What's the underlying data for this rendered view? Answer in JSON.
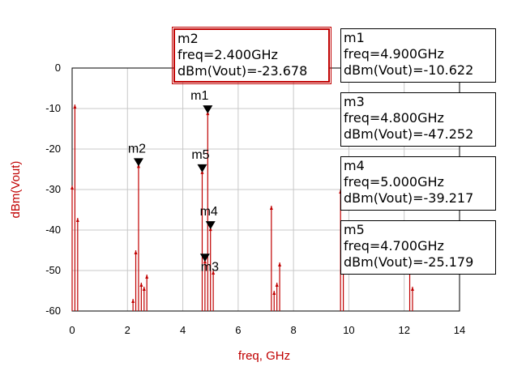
{
  "chart_data": {
    "type": "spectrum",
    "xlabel": "freq, GHz",
    "ylabel": "dBm(Vout)",
    "xlim": [
      0,
      14
    ],
    "ylim": [
      -60,
      0
    ],
    "x_ticks": [
      0,
      2,
      4,
      6,
      8,
      10,
      12,
      14
    ],
    "y_ticks": [
      0,
      -10,
      -20,
      -30,
      -40,
      -50,
      -60
    ],
    "x_tick_labels": [
      "0",
      "2",
      "4",
      "6",
      "8",
      "10",
      "12",
      "14"
    ],
    "y_tick_labels": [
      "0",
      "-10",
      "-20",
      "-30",
      "-40",
      "-50",
      "-60"
    ],
    "grid": true,
    "series": [
      {
        "color": "#c00000",
        "points": [
          {
            "x": 0.0,
            "y": -29
          },
          {
            "x": 0.1,
            "y": -9
          },
          {
            "x": 0.2,
            "y": -37
          },
          {
            "x": 2.2,
            "y": -57
          },
          {
            "x": 2.3,
            "y": -45
          },
          {
            "x": 2.4,
            "y": -23.678
          },
          {
            "x": 2.5,
            "y": -53
          },
          {
            "x": 2.6,
            "y": -54
          },
          {
            "x": 2.7,
            "y": -51
          },
          {
            "x": 4.7,
            "y": -25.179
          },
          {
            "x": 4.8,
            "y": -47.252
          },
          {
            "x": 4.9,
            "y": -10.622
          },
          {
            "x": 5.0,
            "y": -39.217
          },
          {
            "x": 5.1,
            "y": -50
          },
          {
            "x": 7.2,
            "y": -34
          },
          {
            "x": 7.3,
            "y": -55
          },
          {
            "x": 7.4,
            "y": -53
          },
          {
            "x": 7.5,
            "y": -48
          },
          {
            "x": 9.7,
            "y": -30
          },
          {
            "x": 9.8,
            "y": -38
          },
          {
            "x": 12.2,
            "y": -50
          },
          {
            "x": 12.3,
            "y": -54
          }
        ]
      }
    ],
    "markers": [
      {
        "name": "m1",
        "freq": 4.9,
        "value": -10.622,
        "lines": [
          "m1",
          "freq=4.900GHz",
          "dBm(Vout)=-10.622"
        ]
      },
      {
        "name": "m2",
        "freq": 2.4,
        "value": -23.678,
        "lines": [
          "m2",
          "freq=2.400GHz",
          "dBm(Vout)=-23.678"
        ],
        "selected": true
      },
      {
        "name": "m3",
        "freq": 4.8,
        "value": -47.252,
        "lines": [
          "m3",
          "freq=4.800GHz",
          "dBm(Vout)=-47.252"
        ]
      },
      {
        "name": "m4",
        "freq": 5.0,
        "value": -39.217,
        "lines": [
          "m4",
          "freq=5.000GHz",
          "dBm(Vout)=-39.217"
        ]
      },
      {
        "name": "m5",
        "freq": 4.7,
        "value": -25.179,
        "lines": [
          "m5",
          "freq=4.700GHz",
          "dBm(Vout)=-25.179"
        ]
      }
    ]
  },
  "colors": {
    "trace": "#c00000",
    "axis_label": "#c00000",
    "grid": "#c8c8c8",
    "frame": "#000000"
  }
}
